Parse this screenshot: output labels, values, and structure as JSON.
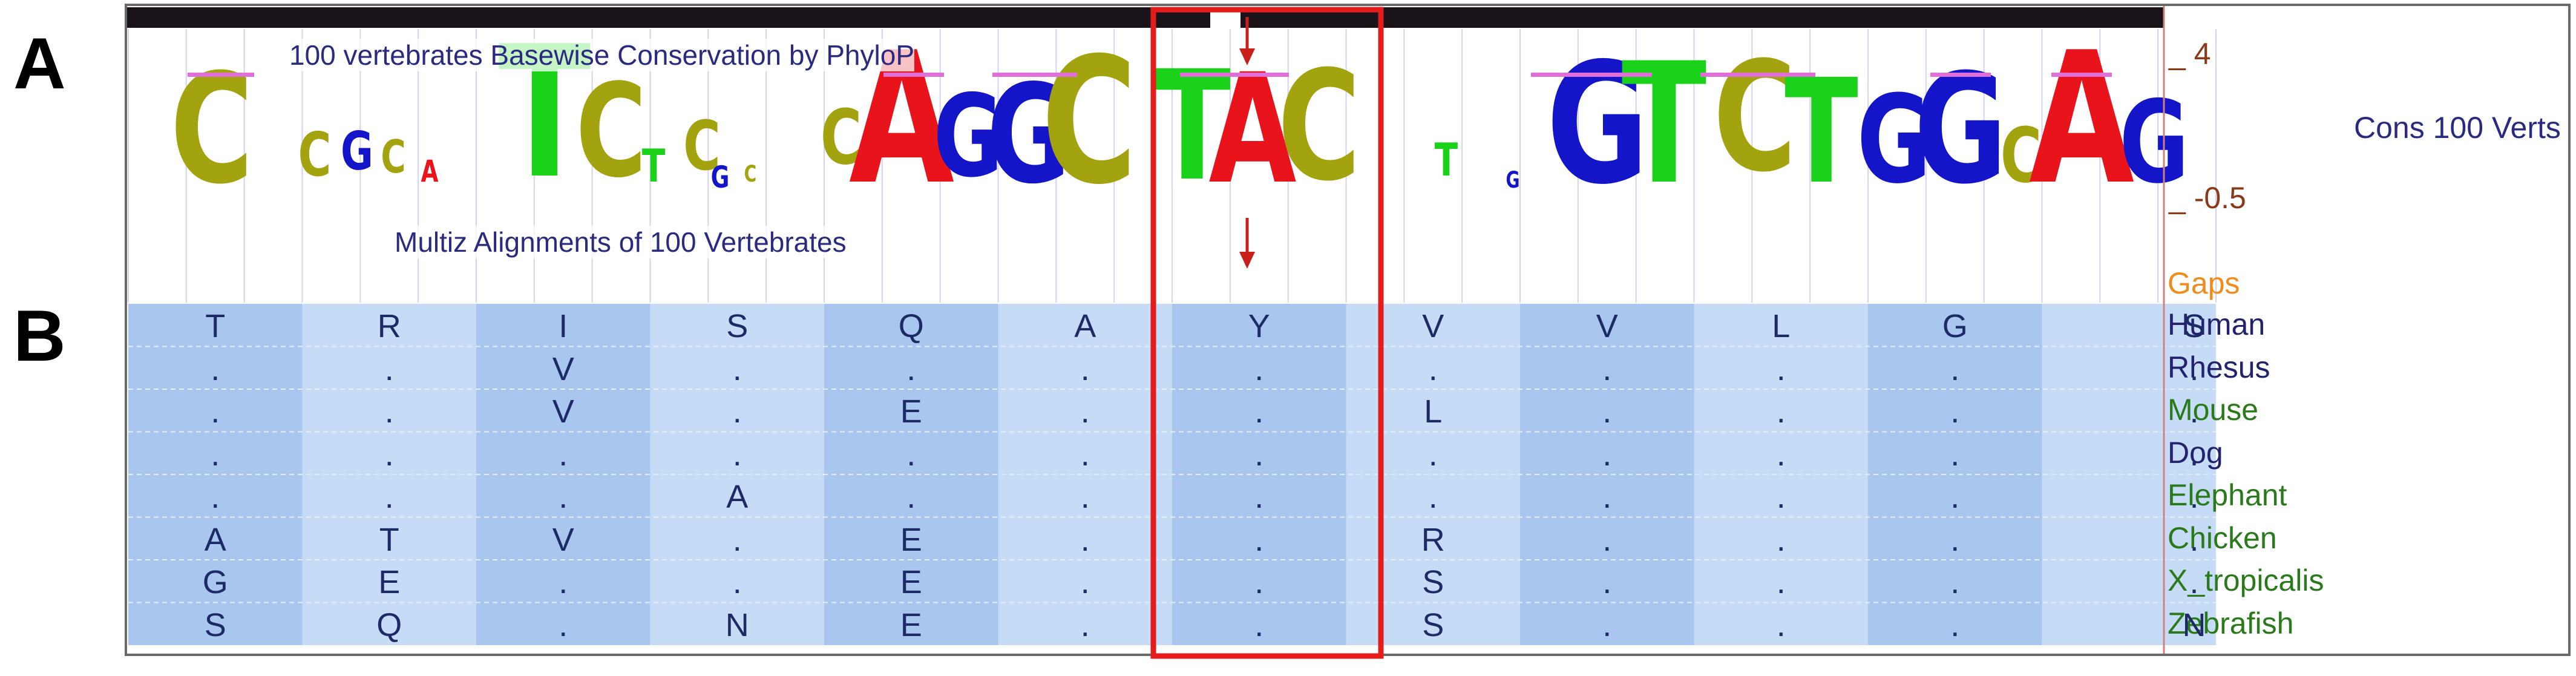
{
  "panel_labels": [
    "A",
    "B"
  ],
  "tracks": {
    "phylop_label": "100 vertebrates Basewise Conservation by PhyloP",
    "multiz_label": "Multiz Alignments of 100 Vertebrates",
    "cons_label": "Cons 100 Verts",
    "axis_top": "_ 4",
    "axis_bottom": "_ -0.5",
    "gaps_label": "Gaps"
  },
  "colors": {
    "A": "#e8131b",
    "C": "#a3a30f",
    "G": "#1414c8",
    "T": "#19d219",
    "text_blue": "#2a2a80",
    "species_green": "#2a7a1c",
    "species_blue": "#22226e",
    "gaps_orange": "#f08c1e",
    "axis_brown": "#8a3a1a",
    "highlight": "#e41c1c"
  },
  "dna_sequence": "CCGCATCTCCCAGGCTACCTCGTCTGGGCAG",
  "alignment": {
    "species": [
      {
        "name": "Human",
        "color": "species_blue",
        "residues": [
          "T",
          "R",
          "I",
          "S",
          "Q",
          "A",
          "Y",
          "V",
          "V",
          "L",
          "G",
          "S"
        ]
      },
      {
        "name": "Rhesus",
        "color": "species_blue",
        "residues": [
          ".",
          ".",
          "V",
          ".",
          ".",
          ".",
          ".",
          ".",
          ".",
          ".",
          ".",
          "."
        ]
      },
      {
        "name": "Mouse",
        "color": "species_green",
        "residues": [
          ".",
          ".",
          "V",
          ".",
          "E",
          ".",
          ".",
          "L",
          ".",
          ".",
          ".",
          "."
        ]
      },
      {
        "name": "Dog",
        "color": "species_blue",
        "residues": [
          ".",
          ".",
          ".",
          ".",
          ".",
          ".",
          ".",
          ".",
          ".",
          ".",
          ".",
          "."
        ]
      },
      {
        "name": "Elephant",
        "color": "species_green",
        "residues": [
          ".",
          ".",
          ".",
          "A",
          ".",
          ".",
          ".",
          ".",
          ".",
          ".",
          ".",
          "."
        ]
      },
      {
        "name": "Chicken",
        "color": "species_green",
        "residues": [
          "A",
          "T",
          "V",
          ".",
          "E",
          ".",
          ".",
          "R",
          ".",
          ".",
          ".",
          "."
        ]
      },
      {
        "name": "X_tropicalis",
        "color": "species_green",
        "residues": [
          "G",
          "E",
          ".",
          ".",
          "E",
          ".",
          ".",
          "S",
          ".",
          ".",
          ".",
          "."
        ]
      },
      {
        "name": "Zebrafish",
        "color": "species_green",
        "residues": [
          "S",
          "Q",
          ".",
          "N",
          "E",
          ".",
          ".",
          "S",
          ".",
          ".",
          ".",
          "N"
        ]
      }
    ]
  }
}
